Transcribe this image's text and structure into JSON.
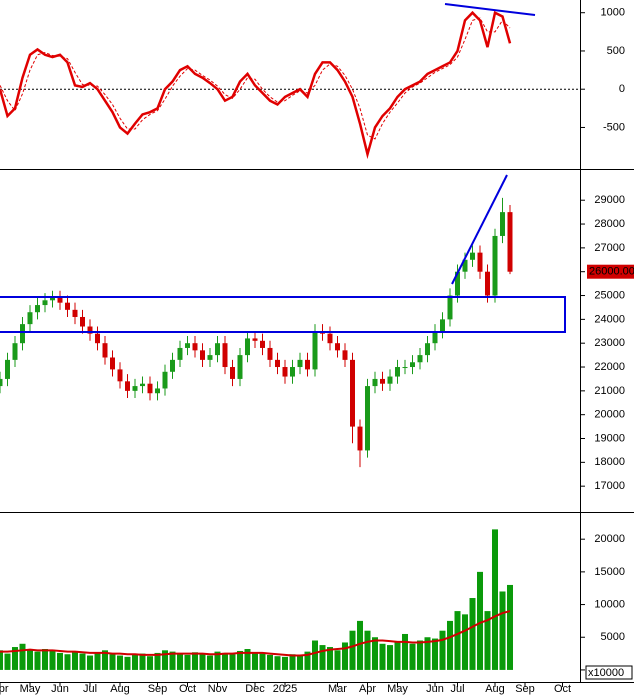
{
  "chart_data": [
    {
      "type": "line",
      "ylim": [
        -1030,
        1140
      ],
      "yticks": [
        -500,
        0,
        500,
        1000
      ],
      "baseline": 0,
      "series": [
        {
          "color": "#e00000",
          "values": [
            0,
            -350,
            -250,
            150,
            450,
            520,
            450,
            420,
            450,
            350,
            50,
            30,
            80,
            0,
            -150,
            -300,
            -500,
            -580,
            -450,
            -330,
            -300,
            -250,
            0,
            100,
            250,
            300,
            200,
            150,
            80,
            0,
            -150,
            -100,
            100,
            200,
            50,
            -50,
            -150,
            -200,
            -100,
            -50,
            0,
            -100,
            200,
            350,
            350,
            250,
            100,
            -100,
            -450,
            -850,
            -500,
            -350,
            -250,
            -100,
            0,
            50,
            100,
            200,
            250,
            300,
            350,
            500,
            900,
            1000,
            900,
            550,
            1000,
            950,
            600,
            null,
            null,
            null,
            null,
            null,
            null,
            null,
            null
          ]
        },
        {
          "color": "#e00000",
          "dashed": true,
          "values": [
            50,
            -150,
            -280,
            -60,
            250,
            450,
            480,
            440,
            430,
            400,
            220,
            60,
            50,
            40,
            -70,
            -200,
            -380,
            -520,
            -520,
            -400,
            -330,
            -280,
            -130,
            40,
            170,
            270,
            250,
            180,
            120,
            40,
            -70,
            -120,
            0,
            150,
            130,
            0,
            -100,
            -170,
            -150,
            -80,
            -20,
            -50,
            50,
            250,
            330,
            300,
            180,
            0,
            -250,
            -600,
            -650,
            -450,
            -300,
            -180,
            -50,
            30,
            80,
            150,
            220,
            270,
            320,
            420,
            650,
            900,
            930,
            750,
            750,
            900,
            800,
            null,
            null,
            null,
            null,
            null,
            null,
            null,
            null
          ]
        }
      ]
    },
    {
      "type": "candlestick",
      "ylim": [
        16000,
        30100
      ],
      "yticks": [
        17000,
        18000,
        19000,
        20000,
        21000,
        22000,
        23000,
        24000,
        25000,
        26000,
        27000,
        28000,
        29000
      ],
      "up_color": "#1a9a1a",
      "down_color": "#d00000",
      "last_price": {
        "value": 26000,
        "label": "26000.00"
      },
      "open": [
        21200,
        21500,
        22300,
        23000,
        23800,
        24300,
        24600,
        24800,
        24900,
        24700,
        24400,
        24100,
        23700,
        23400,
        23000,
        22400,
        21900,
        21400,
        21000,
        21200,
        21300,
        20900,
        21100,
        21800,
        22300,
        22800,
        23000,
        22700,
        22300,
        22500,
        23000,
        22000,
        21500,
        22500,
        23200,
        23100,
        22800,
        22300,
        22000,
        21600,
        22000,
        22300,
        21900,
        23500,
        23400,
        23000,
        22700,
        22300,
        19500,
        18500,
        21200,
        21500,
        21300,
        21600,
        22000,
        22000,
        22200,
        22500,
        23000,
        23500,
        24000,
        25000,
        26000,
        26500,
        26800,
        26000,
        25000,
        27500,
        28500,
        null,
        null,
        null,
        null,
        null,
        null,
        null,
        null
      ],
      "high": [
        21800,
        22600,
        23300,
        24100,
        24600,
        24900,
        25100,
        25200,
        25200,
        25000,
        24700,
        24400,
        24000,
        23700,
        23300,
        22700,
        22200,
        21700,
        21500,
        21600,
        21600,
        21400,
        22100,
        22600,
        23100,
        23300,
        23300,
        23000,
        22800,
        23300,
        23300,
        22300,
        22800,
        23500,
        23500,
        23400,
        23100,
        22600,
        22300,
        22300,
        22600,
        22600,
        23800,
        23800,
        23700,
        23300,
        23000,
        22600,
        19800,
        21500,
        21800,
        21800,
        21900,
        22300,
        22300,
        22500,
        22800,
        23300,
        23800,
        24300,
        25300,
        26300,
        26800,
        27100,
        27100,
        26300,
        27800,
        29100,
        28800,
        null,
        null,
        null,
        null,
        null,
        null,
        null,
        null
      ],
      "low": [
        20900,
        21200,
        22000,
        22700,
        23500,
        24000,
        24300,
        24500,
        24400,
        24100,
        23800,
        23400,
        23100,
        22700,
        22100,
        21600,
        21100,
        20700,
        20700,
        20900,
        20600,
        20600,
        20800,
        21500,
        22000,
        22500,
        22400,
        22000,
        22000,
        22200,
        21700,
        21200,
        21200,
        22200,
        22800,
        22500,
        22000,
        21700,
        21300,
        21300,
        21700,
        21600,
        21600,
        23100,
        22700,
        22400,
        22000,
        18800,
        17800,
        18200,
        20900,
        21000,
        21000,
        21300,
        21700,
        21700,
        21900,
        22200,
        22700,
        23200,
        23700,
        24700,
        25700,
        26200,
        25700,
        24700,
        24700,
        27200,
        25900,
        null,
        null,
        null,
        null,
        null,
        null,
        null,
        null
      ],
      "close": [
        21500,
        22300,
        23000,
        23800,
        24300,
        24600,
        24800,
        24900,
        24700,
        24400,
        24100,
        23700,
        23400,
        23000,
        22400,
        21900,
        21400,
        21000,
        21200,
        21300,
        20900,
        21100,
        21800,
        22300,
        22800,
        23000,
        22700,
        22300,
        22500,
        23000,
        22000,
        21500,
        22500,
        23200,
        23100,
        22800,
        22300,
        22000,
        21600,
        22000,
        22300,
        21900,
        23500,
        23400,
        23000,
        22700,
        22300,
        19500,
        18500,
        21200,
        21500,
        21300,
        21600,
        22000,
        22000,
        22200,
        22500,
        23000,
        23500,
        24000,
        25000,
        26000,
        26500,
        26800,
        26000,
        25000,
        27500,
        28500,
        26000,
        null,
        null,
        null,
        null,
        null,
        null,
        null,
        null
      ]
    },
    {
      "type": "bar",
      "ylim": [
        -2000,
        23700
      ],
      "yticks": [
        0,
        5000,
        10000,
        15000,
        20000
      ],
      "unit_label": "x10000",
      "color": "#0a9a0a",
      "categories": [
        "Apr",
        null,
        null,
        null,
        "May",
        null,
        null,
        null,
        "Jun",
        null,
        null,
        null,
        "Jul",
        null,
        null,
        null,
        "Aug",
        null,
        null,
        null,
        null,
        "Sep",
        null,
        null,
        null,
        "Oct",
        null,
        null,
        null,
        "Nov",
        null,
        null,
        null,
        null,
        "Dec",
        null,
        null,
        null,
        "2025",
        null,
        null,
        null,
        null,
        null,
        null,
        "Mar",
        null,
        null,
        null,
        "Apr",
        null,
        null,
        null,
        "May",
        null,
        null,
        null,
        null,
        "Jun",
        null,
        null,
        "Jul",
        null,
        null,
        null,
        null,
        "Aug",
        null,
        null,
        null,
        "Sep",
        null,
        null,
        null,
        null,
        "Oct",
        null
      ],
      "values": [
        3000,
        2500,
        3500,
        4000,
        3000,
        2800,
        3200,
        3000,
        2600,
        2400,
        2800,
        2500,
        2200,
        2600,
        3000,
        2400,
        2200,
        2000,
        2300,
        2500,
        2100,
        2600,
        3000,
        2800,
        2500,
        2300,
        2700,
        2400,
        2200,
        2800,
        2600,
        2400,
        2900,
        3200,
        2700,
        2500,
        2300,
        2100,
        2000,
        2400,
        2300,
        2800,
        4500,
        3800,
        3500,
        3000,
        4200,
        6000,
        7500,
        6000,
        5000,
        4000,
        3800,
        4200,
        5500,
        4000,
        4500,
        5000,
        4800,
        6000,
        7500,
        9000,
        8500,
        11000,
        15000,
        9000,
        21500,
        12000,
        13000,
        null,
        null,
        null,
        null,
        null,
        null,
        null,
        null
      ],
      "series": [
        {
          "color": "#d00000",
          "values": [
            2800,
            2800,
            2900,
            3000,
            3100,
            3000,
            3000,
            3000,
            2900,
            2800,
            2800,
            2700,
            2600,
            2600,
            2600,
            2500,
            2500,
            2400,
            2400,
            2300,
            2300,
            2300,
            2400,
            2500,
            2500,
            2500,
            2500,
            2500,
            2400,
            2400,
            2500,
            2500,
            2600,
            2600,
            2600,
            2600,
            2500,
            2400,
            2300,
            2200,
            2200,
            2300,
            2600,
            2900,
            3100,
            3200,
            3300,
            3600,
            4000,
            4300,
            4500,
            4500,
            4400,
            4300,
            4300,
            4200,
            4200,
            4300,
            4400,
            4600,
            5000,
            5500,
            6000,
            6600,
            7200,
            7600,
            8200,
            8700,
            9000,
            null,
            null,
            null,
            null,
            null,
            null,
            null,
            null
          ]
        }
      ]
    }
  ]
}
